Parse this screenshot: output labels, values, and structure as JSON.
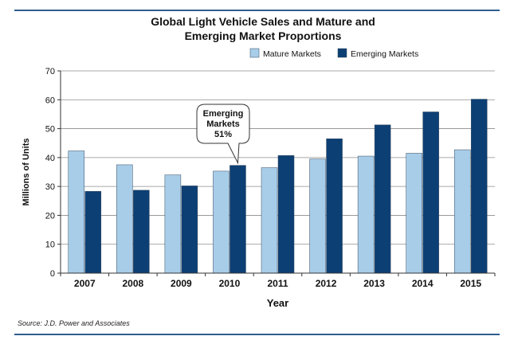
{
  "colors": {
    "rule": "#2e5e8e",
    "mature": "#a8cde9",
    "emerging": "#0c3f74",
    "bar_outline": "#34495e",
    "grid": "#8c8c8c",
    "axis": "#333333"
  },
  "chart_data": {
    "type": "bar",
    "title_lines": [
      "Global Light Vehicle Sales and Mature and",
      "Emerging Market Proportions"
    ],
    "xlabel": "Year",
    "ylabel": "Millions of Units",
    "ylim": [
      0,
      70
    ],
    "yticks": [
      0,
      10,
      20,
      30,
      40,
      50,
      60,
      70
    ],
    "grid": true,
    "legend_position": "top-right",
    "categories": [
      "2007",
      "2008",
      "2009",
      "2010",
      "2011",
      "2012",
      "2013",
      "2014",
      "2015"
    ],
    "series": [
      {
        "name": "Mature Markets",
        "color_key": "mature",
        "values": [
          42.3,
          37.5,
          34.0,
          35.3,
          36.5,
          39.5,
          40.5,
          41.5,
          42.7
        ]
      },
      {
        "name": "Emerging Markets",
        "color_key": "emerging",
        "values": [
          28.3,
          28.7,
          30.2,
          37.3,
          40.7,
          46.5,
          51.3,
          55.8,
          60.2
        ]
      }
    ],
    "annotation": {
      "lines": [
        "Emerging",
        "Markets",
        "51%"
      ],
      "category": "2010",
      "series": "Emerging Markets"
    }
  },
  "source_text": "Source: J.D. Power and Associates"
}
